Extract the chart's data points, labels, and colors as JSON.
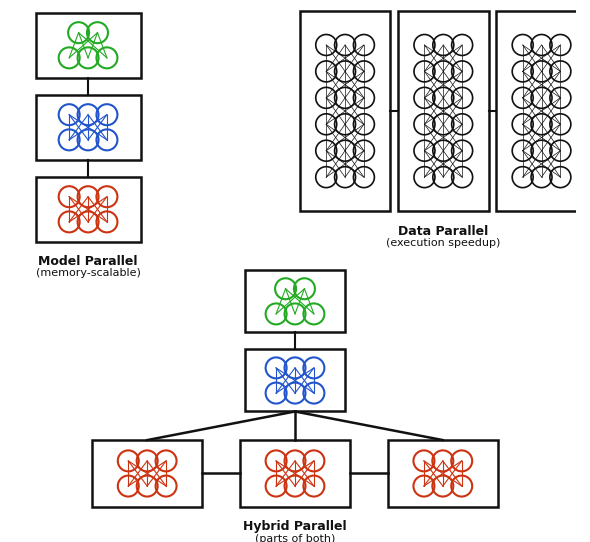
{
  "green_color": "#22aa22",
  "blue_color": "#2255cc",
  "red_color": "#cc3311",
  "black_color": "#111111",
  "bg_color": "#ffffff",
  "model_parallel_label": "Model Parallel",
  "model_parallel_sub": "(memory-scalable)",
  "data_parallel_label": "Data Parallel",
  "data_parallel_sub": "(execution speedup)",
  "hybrid_parallel_label": "Hybrid Parallel",
  "hybrid_parallel_sub": "(parts of both)"
}
